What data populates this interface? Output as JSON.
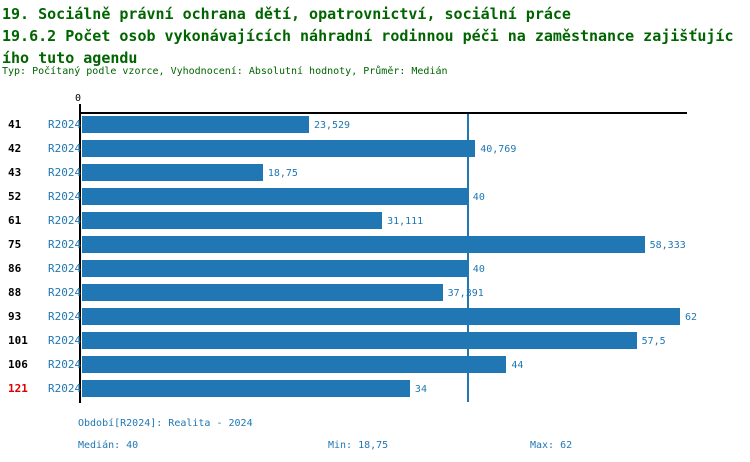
{
  "title": {
    "line1": "19. Sociálně právní ochrana dětí, opatrovnictví, sociální práce",
    "line2": "19.6.2 Počet osob vykonávajících náhradní rodinnou péči na zaměstnance zajišťujíc",
    "line3": "ího tuto agendu",
    "meta": "Typ: Počítaný podle vzorce, Vyhodnocení: Absolutní hodnoty, Průměr: Medián"
  },
  "chart_data": {
    "type": "bar",
    "orientation": "horizontal",
    "title": "19.6.2 Počet osob vykonávajících náhradní rodinnou péči na zaměstnance zajišťujícího tuto agendu",
    "axis": {
      "origin_label": "0",
      "min": 0,
      "max": 62,
      "grid": false
    },
    "median_reference_line": 40,
    "series_label": "R2024",
    "categories": [
      "41",
      "42",
      "43",
      "52",
      "61",
      "75",
      "86",
      "88",
      "93",
      "101",
      "106",
      "121"
    ],
    "values": [
      23.529,
      40.769,
      18.75,
      40,
      31.111,
      58.333,
      40,
      37.391,
      62,
      57.5,
      44,
      34
    ],
    "rows": [
      {
        "id": "41",
        "period": "R2024",
        "value": 23.529,
        "value_label": "23,529",
        "highlight": false
      },
      {
        "id": "42",
        "period": "R2024",
        "value": 40.769,
        "value_label": "40,769",
        "highlight": false
      },
      {
        "id": "43",
        "period": "R2024",
        "value": 18.75,
        "value_label": "18,75",
        "highlight": false
      },
      {
        "id": "52",
        "period": "R2024",
        "value": 40,
        "value_label": "40",
        "highlight": false
      },
      {
        "id": "61",
        "period": "R2024",
        "value": 31.111,
        "value_label": "31,111",
        "highlight": false
      },
      {
        "id": "75",
        "period": "R2024",
        "value": 58.333,
        "value_label": "58,333",
        "highlight": false
      },
      {
        "id": "86",
        "period": "R2024",
        "value": 40,
        "value_label": "40",
        "highlight": false
      },
      {
        "id": "88",
        "period": "R2024",
        "value": 37.391,
        "value_label": "37,391",
        "highlight": false
      },
      {
        "id": "93",
        "period": "R2024",
        "value": 62,
        "value_label": "62",
        "highlight": false
      },
      {
        "id": "101",
        "period": "R2024",
        "value": 57.5,
        "value_label": "57,5",
        "highlight": false
      },
      {
        "id": "106",
        "period": "R2024",
        "value": 44,
        "value_label": "44",
        "highlight": false
      },
      {
        "id": "121",
        "period": "R2024",
        "value": 34,
        "value_label": "34",
        "highlight": true
      }
    ],
    "stats": {
      "median": 40,
      "min": 18.75,
      "max": 62
    }
  },
  "footer": {
    "period": "Období[R2024]: Realita - 2024",
    "median": "Medián: 40",
    "min": "Min: 18,75",
    "max": "Max: 62"
  },
  "colors": {
    "bar": "#2077B4",
    "median_line": "#2077B4",
    "text_blue": "#1F77B4",
    "title_green": "#006400",
    "highlight_red": "#DD0000",
    "axis": "#000000"
  }
}
